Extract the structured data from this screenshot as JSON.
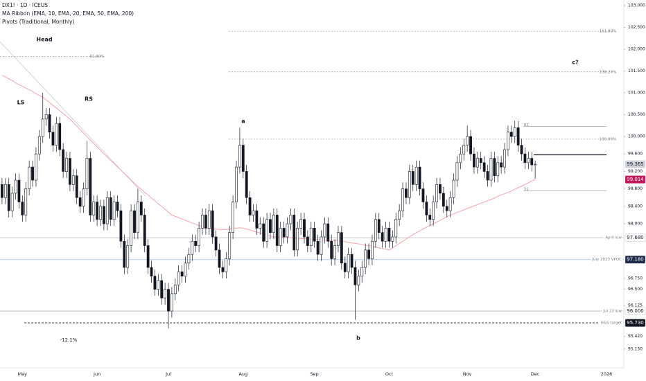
{
  "chart_data": {
    "type": "candlestick",
    "title": "DX1! · 1D · ICEUS",
    "indicators": [
      "MA Ribbon (EMA, 10, EMA, 20, EMA, 50, EMA, 200)",
      "Pivots (Traditional, Monthly)"
    ],
    "up_color": "#ffffff",
    "down_color": "#131722",
    "wick_color": "#131722",
    "open": [
      98.9,
      98.6,
      98.9,
      98.3,
      98.7,
      99.0,
      98.5,
      98.2,
      98.8,
      99.3,
      99.0,
      99.6,
      100.0,
      100.4,
      100.5,
      100.1,
      99.8,
      100.3,
      99.7,
      99.2,
      99.5,
      98.9,
      99.1,
      98.6,
      98.4,
      98.8,
      99.5,
      98.2,
      98.5,
      98.1,
      98.4,
      98.0,
      98.6,
      98.1,
      98.5,
      98.3,
      97.6,
      97.0,
      97.5,
      98.3,
      97.8,
      98.5,
      98.2,
      97.5,
      97.0,
      96.8,
      96.5,
      96.7,
      96.3,
      96.5,
      96.0,
      96.4,
      96.6,
      96.9,
      96.8,
      97.1,
      97.3,
      97.6,
      97.5,
      97.9,
      98.2,
      97.9,
      98.3,
      97.7,
      97.4,
      97.0,
      96.9,
      97.2,
      97.8,
      98.5,
      99.3,
      99.8,
      99.2,
      98.6,
      98.2,
      98.3,
      97.9,
      98.0,
      97.6,
      98.1,
      97.8,
      98.2,
      97.5,
      97.9,
      97.7,
      98.0,
      98.2,
      97.4,
      97.9,
      98.1,
      97.7,
      97.5,
      97.9,
      97.6,
      97.3,
      97.7,
      98.0,
      97.6,
      97.2,
      97.5,
      97.8,
      97.1,
      96.9,
      97.3,
      97.0,
      96.6,
      96.8,
      97.0,
      97.4,
      97.2,
      97.6,
      98.1,
      97.8,
      97.6,
      97.9,
      97.6,
      97.7,
      98.1,
      98.3,
      98.8,
      98.6,
      99.2,
      98.9,
      99.3,
      98.8,
      98.5,
      98.2,
      98.1,
      98.5,
      98.9,
      98.7,
      98.4,
      98.3,
      98.6,
      99.0,
      99.4,
      99.6,
      99.8,
      100.0,
      99.6,
      99.3,
      99.5,
      99.4,
      99.2,
      99.0,
      99.5,
      99.1,
      99.4,
      99.3,
      99.7,
      100.1,
      100.0,
      100.2,
      99.8,
      99.6,
      99.4,
      99.5,
      99.35
    ],
    "high": [
      99.05,
      99.05,
      99.05,
      98.85,
      99.15,
      99.15,
      98.65,
      98.95,
      99.45,
      99.45,
      99.75,
      100.15,
      101.0,
      100.65,
      100.65,
      100.25,
      100.45,
      100.45,
      99.85,
      99.65,
      99.65,
      99.25,
      99.25,
      98.75,
      98.95,
      99.9,
      99.65,
      98.65,
      98.65,
      98.55,
      98.55,
      98.75,
      98.75,
      98.65,
      98.65,
      98.45,
      97.75,
      97.65,
      98.45,
      98.45,
      98.8,
      98.65,
      98.35,
      97.65,
      97.15,
      96.95,
      96.85,
      96.85,
      96.65,
      96.65,
      96.55,
      96.75,
      97.05,
      97.05,
      97.25,
      97.45,
      97.75,
      97.75,
      98.05,
      98.35,
      98.35,
      98.45,
      98.45,
      97.85,
      97.55,
      97.15,
      97.35,
      97.95,
      98.65,
      99.45,
      100.2,
      99.95,
      99.35,
      98.75,
      98.45,
      98.45,
      98.15,
      98.15,
      98.25,
      98.25,
      98.35,
      98.35,
      98.05,
      98.05,
      98.15,
      98.35,
      98.35,
      98.05,
      98.25,
      98.25,
      97.85,
      98.05,
      98.05,
      97.75,
      97.85,
      98.15,
      98.15,
      97.75,
      97.65,
      97.95,
      97.95,
      97.25,
      97.45,
      97.45,
      97.15,
      96.95,
      97.15,
      97.55,
      97.55,
      97.75,
      98.25,
      98.25,
      97.95,
      98.05,
      98.05,
      97.85,
      98.25,
      98.45,
      98.95,
      98.95,
      99.35,
      99.35,
      99.45,
      99.45,
      98.95,
      98.65,
      98.35,
      98.65,
      99.05,
      99.05,
      98.85,
      98.55,
      98.75,
      99.15,
      99.55,
      99.75,
      99.95,
      100.25,
      100.15,
      99.75,
      99.65,
      99.65,
      99.55,
      99.35,
      99.65,
      99.65,
      99.55,
      99.55,
      99.85,
      100.25,
      100.25,
      100.36,
      100.35,
      99.95,
      99.75,
      99.65,
      99.65,
      99.45
    ],
    "low": [
      98.45,
      98.45,
      98.15,
      98.15,
      98.55,
      98.35,
      98.05,
      98.05,
      98.65,
      98.85,
      98.85,
      99.45,
      99.85,
      100.25,
      99.95,
      99.65,
      99.65,
      99.55,
      99.05,
      99.05,
      98.75,
      98.75,
      98.45,
      98.25,
      98.25,
      98.65,
      98.05,
      98.05,
      97.95,
      97.95,
      97.85,
      97.85,
      97.95,
      97.95,
      98.15,
      97.45,
      96.85,
      96.85,
      97.35,
      97.65,
      97.65,
      98.05,
      97.35,
      96.85,
      96.65,
      96.35,
      96.35,
      96.15,
      96.15,
      95.6,
      95.85,
      96.25,
      96.45,
      96.65,
      96.65,
      96.95,
      97.15,
      97.35,
      97.35,
      97.75,
      97.75,
      97.75,
      97.55,
      97.25,
      96.85,
      96.75,
      96.75,
      97.05,
      97.65,
      98.35,
      99.15,
      99.05,
      98.45,
      98.05,
      98.05,
      97.75,
      97.75,
      97.45,
      97.45,
      97.65,
      97.65,
      97.35,
      97.35,
      97.55,
      97.55,
      97.85,
      97.25,
      97.25,
      97.75,
      97.55,
      97.35,
      97.35,
      97.45,
      97.15,
      97.15,
      97.55,
      97.45,
      97.05,
      97.05,
      97.35,
      96.95,
      96.75,
      96.75,
      96.85,
      95.8,
      96.45,
      96.65,
      96.85,
      97.05,
      97.05,
      97.45,
      97.65,
      97.45,
      97.45,
      97.45,
      97.45,
      97.55,
      97.95,
      98.15,
      98.45,
      98.45,
      98.75,
      98.75,
      98.65,
      98.35,
      98.05,
      97.95,
      97.95,
      98.35,
      98.55,
      98.25,
      98.15,
      98.15,
      98.45,
      98.85,
      99.25,
      99.45,
      99.65,
      99.45,
      99.15,
      99.15,
      99.25,
      99.05,
      98.85,
      98.85,
      98.95,
      98.95,
      99.15,
      99.15,
      99.55,
      99.85,
      99.85,
      99.65,
      99.45,
      99.25,
      99.25,
      99.2,
      99.03
    ],
    "close": [
      98.6,
      98.9,
      98.3,
      98.7,
      99.0,
      98.5,
      98.2,
      98.8,
      99.3,
      99.0,
      99.6,
      100.0,
      100.4,
      100.5,
      100.1,
      99.8,
      100.3,
      99.7,
      99.2,
      99.5,
      98.9,
      99.1,
      98.6,
      98.4,
      98.8,
      99.5,
      98.2,
      98.5,
      98.1,
      98.4,
      98.0,
      98.6,
      98.1,
      98.5,
      98.3,
      97.6,
      97.0,
      97.5,
      98.3,
      97.8,
      98.5,
      98.2,
      97.5,
      97.0,
      96.8,
      96.5,
      96.7,
      96.3,
      96.5,
      96.0,
      96.4,
      96.6,
      96.9,
      96.8,
      97.1,
      97.3,
      97.6,
      97.5,
      97.9,
      98.2,
      97.9,
      98.3,
      97.7,
      97.4,
      97.0,
      96.9,
      97.2,
      97.8,
      98.5,
      99.3,
      99.8,
      99.2,
      98.6,
      98.2,
      98.3,
      97.9,
      98.0,
      97.6,
      98.1,
      97.8,
      98.2,
      97.5,
      97.9,
      97.7,
      98.0,
      98.2,
      97.4,
      97.9,
      98.1,
      97.7,
      97.5,
      97.9,
      97.6,
      97.3,
      97.7,
      98.0,
      97.6,
      97.2,
      97.5,
      97.8,
      97.1,
      96.9,
      97.3,
      97.0,
      96.6,
      96.8,
      97.0,
      97.4,
      97.2,
      97.6,
      98.1,
      97.8,
      97.6,
      97.9,
      97.6,
      97.7,
      98.1,
      98.3,
      98.8,
      98.6,
      99.2,
      98.9,
      99.3,
      98.8,
      98.5,
      98.2,
      98.1,
      98.5,
      98.9,
      98.7,
      98.4,
      98.3,
      98.6,
      99.0,
      99.4,
      99.6,
      99.8,
      100.0,
      99.6,
      99.3,
      99.5,
      99.4,
      99.2,
      99.0,
      99.5,
      99.1,
      99.4,
      99.3,
      99.7,
      100.1,
      100.0,
      100.2,
      99.8,
      99.6,
      99.4,
      99.5,
      99.35,
      99.365
    ],
    "last_price_tag_color": "#d1d4dc",
    "ma_line": {
      "color": "#f4a3a8",
      "tag_color": "#c2185b",
      "values": [
        101.4,
        101.36,
        101.32,
        101.28,
        101.23,
        101.19,
        101.15,
        101.11,
        101.07,
        101.03,
        100.98,
        100.94,
        100.9,
        100.84,
        100.78,
        100.71,
        100.65,
        100.59,
        100.53,
        100.46,
        100.4,
        100.32,
        100.24,
        100.16,
        100.08,
        100.0,
        99.92,
        99.84,
        99.76,
        99.68,
        99.6,
        99.53,
        99.45,
        99.38,
        99.3,
        99.23,
        99.15,
        99.08,
        99.0,
        98.93,
        98.85,
        98.79,
        98.72,
        98.66,
        98.59,
        98.53,
        98.46,
        98.4,
        98.33,
        98.27,
        98.2,
        98.17,
        98.14,
        98.11,
        98.08,
        98.05,
        98.02,
        97.99,
        97.96,
        97.93,
        97.9,
        97.9,
        97.89,
        97.88,
        97.87,
        97.87,
        97.87,
        97.88,
        97.89,
        97.9,
        97.91,
        97.9,
        97.88,
        97.86,
        97.83,
        97.81,
        97.79,
        97.77,
        97.74,
        97.72,
        97.7,
        97.7,
        97.69,
        97.69,
        97.68,
        97.68,
        97.67,
        97.67,
        97.66,
        97.66,
        97.65,
        97.65,
        97.64,
        97.64,
        97.63,
        97.63,
        97.62,
        97.62,
        97.61,
        97.61,
        97.6,
        97.59,
        97.57,
        97.56,
        97.55,
        97.54,
        97.53,
        97.51,
        97.5,
        97.48,
        97.47,
        97.45,
        97.43,
        97.42,
        97.4,
        97.45,
        97.5,
        97.55,
        97.6,
        97.65,
        97.7,
        97.75,
        97.8,
        97.84,
        97.88,
        97.92,
        97.96,
        98.0,
        98.04,
        98.08,
        98.12,
        98.16,
        98.2,
        98.23,
        98.26,
        98.29,
        98.32,
        98.35,
        98.38,
        98.41,
        98.44,
        98.47,
        98.5,
        98.53,
        98.56,
        98.59,
        98.63,
        98.66,
        98.69,
        98.72,
        98.75,
        98.79,
        98.83,
        98.86,
        98.9,
        98.94,
        98.98,
        99.014
      ]
    },
    "trendline": {
      "color": "#c8cad0",
      "x": [
        -0.6,
        42.3
      ],
      "values": [
        102.17,
        98.63
      ]
    },
    "fibs": [
      {
        "label": "161.80%",
        "value": 102.41
      },
      {
        "label": "138.20%",
        "value": 101.48
      },
      {
        "label": "100.00%",
        "value": 99.94
      },
      {
        "label": "61.80%",
        "value": 101.83
      }
    ],
    "pivots": [
      {
        "label": "R1",
        "value": 100.23,
        "color": "#b2b5be"
      },
      {
        "value": 99.58,
        "color": "#131722"
      },
      {
        "label": "S1",
        "value": 98.76,
        "color": "#b2b5be"
      }
    ],
    "levels": [
      {
        "name": "April low",
        "value": 97.68,
        "label": "97.680",
        "color": "#b2b5be",
        "tag_color": "#ffffff",
        "tag_text_color": "#131722"
      },
      {
        "name": "July 2023 VPOC",
        "value": 97.18,
        "label": "97.180",
        "color": "#90bff9",
        "tag_color": "#1e2a4a",
        "tag_text_color": "#ffffff"
      },
      {
        "name": "Jul 23 low",
        "value": 96.0,
        "label": "96.000",
        "color": "#b2b5be",
        "tag_color": "#ffffff",
        "tag_text_color": "#131722"
      },
      {
        "name": "H&S target",
        "value": 95.73,
        "label": "95.730",
        "color": "#131722",
        "dashed": true,
        "tag_color": "#131722",
        "tag_text_color": "#ffffff"
      }
    ],
    "annotations": [
      "Head",
      "LS",
      "RS",
      "a",
      "b",
      "c?",
      "-12.1%"
    ],
    "xlim": [
      -0.6,
      183.1
    ],
    "xticks": [
      {
        "value": 6,
        "label": "May"
      },
      {
        "value": 28,
        "label": "Jun"
      },
      {
        "value": 49,
        "label": "Jul"
      },
      {
        "value": 71,
        "label": "Aug"
      },
      {
        "value": 92,
        "label": "Sep"
      },
      {
        "value": 114,
        "label": "Oct"
      },
      {
        "value": 137,
        "label": "Nov"
      },
      {
        "value": 157,
        "label": "Dec"
      },
      {
        "value": 178,
        "label": "2026"
      }
    ],
    "ylim": [
      94.7,
      103.0
    ],
    "yticks": [
      {
        "value": 103,
        "label": "103.000"
      },
      {
        "value": 102.5,
        "label": "102.500"
      },
      {
        "value": 102,
        "label": "102.000"
      },
      {
        "value": 101.5,
        "label": "101.500"
      },
      {
        "value": 101,
        "label": "101.000"
      },
      {
        "value": 100.5,
        "label": "100.500"
      },
      {
        "value": 100,
        "label": "100.000"
      },
      {
        "value": 99.6,
        "label": "99.600"
      },
      {
        "value": 99.2,
        "label": "99.200"
      },
      {
        "value": 98.8,
        "label": "98.800"
      },
      {
        "value": 98.4,
        "label": "98.400"
      },
      {
        "value": 98,
        "label": "98.000"
      },
      {
        "value": 96.75,
        "label": "96.750"
      },
      {
        "value": 96.5,
        "label": "96.500"
      },
      {
        "value": 96.125,
        "label": "96.125"
      },
      {
        "value": 95.42,
        "label": "95.420"
      },
      {
        "value": 95.13,
        "label": "95.130"
      }
    ]
  }
}
